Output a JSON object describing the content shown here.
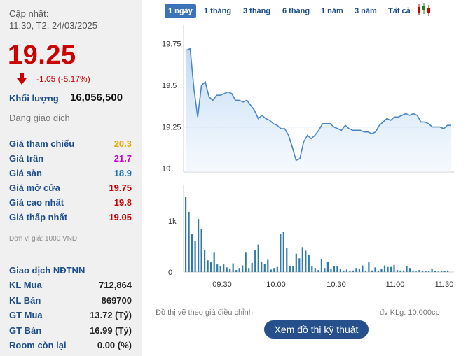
{
  "header": {
    "updated_label": "Cập nhật:",
    "updated_time": "11:30, T2, 24/03/2025"
  },
  "quote": {
    "price": "19.25",
    "change": "-1.05 (-5.17%)",
    "volume_label": "Khối lượng",
    "volume_value": "16,056,500",
    "status": "Đang giao dịch"
  },
  "prices": [
    {
      "label": "Giá tham chiếu",
      "value": "20.3",
      "color": "#e6a800"
    },
    {
      "label": "Giá trần",
      "value": "21.7",
      "color": "#cc00cc"
    },
    {
      "label": "Giá sàn",
      "value": "18.9",
      "color": "#1f6fb5"
    },
    {
      "label": "Giá mở cửa",
      "value": "19.75",
      "color": "#cc0000"
    },
    {
      "label": "Giá cao nhất",
      "value": "19.8",
      "color": "#cc0000"
    },
    {
      "label": "Giá thấp nhất",
      "value": "19.05",
      "color": "#cc0000"
    }
  ],
  "unit_note": "Đơn vị giá: 1000 VNĐ",
  "foreign": {
    "title": "Giao dịch NĐTNN",
    "rows": [
      {
        "label": "KL Mua",
        "value": "712,864"
      },
      {
        "label": "KL Bán",
        "value": "869700"
      },
      {
        "label": "GT Mua",
        "value": "13.72 (Tỷ)"
      },
      {
        "label": "GT Bán",
        "value": "16.99 (Tỷ)"
      },
      {
        "label": "Room còn lại",
        "value": "0.00 (%)"
      }
    ]
  },
  "tabs": [
    "1 ngày",
    "1 tháng",
    "3 tháng",
    "6 tháng",
    "1 năm",
    "3 năm",
    "Tất cả"
  ],
  "active_tab": "1 ngày",
  "chart_note_left": "Đồ thị vẽ theo giá điều chỉnh",
  "chart_note_right": "đv KLg: 10,000cp",
  "tech_button": "Xem đồ thị kỹ thuật",
  "colors": {
    "price_line": "#4a86c6",
    "area_fill": "#bcd8f4",
    "volume_bar": "#2f7aa7",
    "reference_line": "#9ec3e6"
  },
  "chart_data": [
    {
      "type": "area",
      "title": "",
      "y_ticks": [
        "19.75",
        "19.5",
        "19.25",
        "19"
      ],
      "ylim": [
        18.98,
        19.86
      ],
      "reference": 19.25,
      "x_ticks": [
        "09:30",
        "10:00",
        "10:30",
        "11:00",
        "11:30"
      ],
      "x": [
        0,
        1,
        2,
        3,
        4,
        5,
        6,
        7,
        8,
        9,
        10,
        11,
        12,
        13,
        14,
        15,
        16,
        17,
        18,
        19,
        20,
        21,
        22,
        23,
        24,
        25,
        26,
        27,
        28,
        29,
        30,
        31,
        32,
        33,
        34,
        35,
        36,
        37,
        38,
        39,
        40,
        41,
        42,
        43,
        44,
        45,
        46,
        47,
        48,
        49,
        50,
        51,
        52,
        53,
        54,
        55,
        56,
        57,
        58,
        59,
        60,
        61,
        62,
        63,
        64,
        65,
        66,
        67,
        68,
        69,
        70,
        71,
        72,
        73,
        74,
        75,
        76,
        77,
        78,
        79,
        80,
        81,
        82,
        83,
        84,
        85,
        86,
        87,
        88,
        89,
        90,
        91,
        92,
        93,
        94,
        95,
        96,
        97,
        98,
        99,
        100,
        101,
        102,
        103
      ],
      "values": [
        19.71,
        19.72,
        19.48,
        19.31,
        19.5,
        19.52,
        19.43,
        19.41,
        19.44,
        19.44,
        19.45,
        19.46,
        19.45,
        19.41,
        19.41,
        19.4,
        19.41,
        19.38,
        19.35,
        19.3,
        19.32,
        19.3,
        19.29,
        19.27,
        19.26,
        19.24,
        19.24,
        19.2,
        19.13,
        19.05,
        19.06,
        19.16,
        19.2,
        19.18,
        19.2,
        19.23,
        19.27,
        19.27,
        19.27,
        19.25,
        19.24,
        19.23,
        19.26,
        19.24,
        19.23,
        19.23,
        19.23,
        19.22,
        19.22,
        19.21,
        19.22,
        19.26,
        19.28,
        19.3,
        19.29,
        19.31,
        19.31,
        19.32,
        19.33,
        19.32,
        19.33,
        19.32,
        19.28,
        19.28,
        19.27,
        19.25,
        19.25,
        19.25,
        19.24,
        19.26,
        19.26,
        19.25,
        19.23,
        19.23,
        19.23,
        19.23,
        19.23,
        19.23,
        19.23,
        19.23,
        19.23,
        19.23,
        19.23,
        19.23,
        19.23,
        19.23,
        19.23,
        19.23,
        19.23,
        19.23,
        19.23,
        19.23,
        19.23,
        19.23,
        19.23,
        19.23,
        19.23,
        19.23,
        19.23,
        19.23,
        19.23,
        19.23,
        19.23,
        19.23
      ]
    },
    {
      "type": "bar",
      "title": "",
      "y_ticks": [
        "1k",
        "0"
      ],
      "ylim": [
        0,
        1700
      ],
      "x_ticks": [
        "09:30",
        "10:00",
        "10:30",
        "11:00",
        "11:30"
      ],
      "values": [
        1480,
        1180,
        750,
        610,
        1040,
        840,
        430,
        230,
        190,
        380,
        150,
        110,
        150,
        90,
        70,
        170,
        40,
        80,
        130,
        380,
        80,
        180,
        430,
        540,
        200,
        160,
        240,
        50,
        80,
        100,
        740,
        790,
        470,
        110,
        110,
        360,
        270,
        490,
        420,
        340,
        110,
        80,
        40,
        260,
        80,
        200,
        70,
        110,
        110,
        60,
        30,
        50,
        30,
        30,
        80,
        70,
        130,
        20,
        190,
        30,
        90,
        20,
        70,
        130,
        100,
        100,
        140,
        40,
        30,
        30,
        110,
        80,
        30,
        10,
        40,
        20,
        20,
        20,
        70,
        20,
        10,
        30,
        20,
        30
      ]
    }
  ]
}
